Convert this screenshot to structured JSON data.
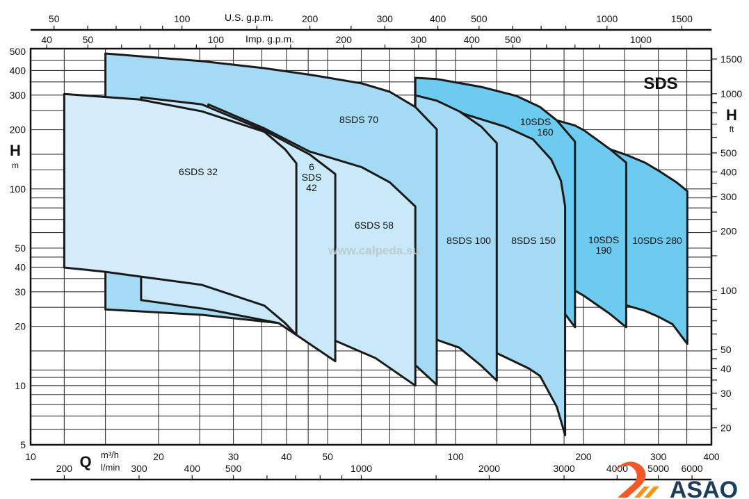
{
  "chart_data": {
    "type": "area",
    "title": "SDS",
    "watermark": "www.calpeda.su",
    "logo": "ASAO",
    "x_axis": {
      "label": "Q",
      "unit": "m³/h",
      "scale": "log",
      "range": [
        10,
        400
      ],
      "ticks": [
        10,
        20,
        30,
        40,
        50,
        100,
        200,
        300,
        400
      ]
    },
    "x_axis_lmin": {
      "unit": "l/min",
      "factor_to_m3h": 0.06,
      "ticks": [
        200,
        300,
        400,
        500,
        1000,
        2000,
        3000,
        4000,
        5000,
        6000
      ],
      "minor": [
        600,
        700,
        800,
        900,
        1500
      ]
    },
    "x_axis_us_gpm": {
      "label": "U.S. g.p.m.",
      "factor_to_m3h": 0.2271,
      "ticks": [
        50,
        100,
        200,
        300,
        400,
        500,
        1000,
        1500
      ],
      "minor": [
        60,
        70,
        80,
        90,
        150,
        250,
        600,
        700,
        800
      ]
    },
    "x_axis_imp_gpm": {
      "label": "Imp. g.p.m.",
      "factor_to_m3h": 0.2728,
      "ticks": [
        40,
        50,
        100,
        200,
        300,
        400,
        500,
        1000
      ],
      "minor": [
        60,
        70,
        80,
        90,
        150,
        250,
        600,
        700,
        800
      ]
    },
    "y_axis": {
      "label": "H",
      "unit": "m",
      "scale": "log",
      "range": [
        5,
        500
      ],
      "ticks": [
        5,
        10,
        20,
        30,
        40,
        50,
        100,
        200,
        300,
        400,
        500
      ]
    },
    "y_axis_ft": {
      "label": "H",
      "unit": "ft",
      "factor_to_m": 0.3048,
      "ticks": [
        20,
        30,
        40,
        50,
        100,
        200,
        300,
        400,
        500,
        1000,
        1500
      ],
      "minor": [
        25,
        35,
        45,
        60,
        70,
        80,
        90,
        150,
        250,
        350,
        600,
        700,
        800,
        900
      ]
    },
    "grid": true,
    "grid_q": [
      12,
      15,
      20,
      25,
      30,
      35,
      40,
      45,
      50,
      60,
      70,
      80,
      90,
      100,
      125,
      150,
      180,
      200,
      250,
      300,
      350
    ],
    "grid_h": [
      6,
      7,
      8,
      9,
      10,
      11,
      12,
      15,
      20,
      25,
      30,
      35,
      40,
      45,
      50,
      60,
      70,
      80,
      90,
      100,
      125,
      150,
      200,
      250,
      300,
      350,
      400,
      450
    ],
    "series": [
      {
        "name": "10SDS 280",
        "label": [
          "10SDS 280"
        ],
        "color": "#6dcbf0",
        "points": [
          [
            231,
            159
          ],
          [
            252,
            149
          ],
          [
            279,
            136
          ],
          [
            300,
            124
          ],
          [
            331,
            108
          ],
          [
            351,
            97.5
          ],
          [
            351,
            16.3
          ],
          [
            324,
            20.5
          ],
          [
            300,
            22.4
          ],
          [
            279,
            24.0
          ],
          [
            252,
            25.6
          ],
          [
            231,
            26
          ]
        ]
      },
      {
        "name": "10SDS 190",
        "label": [
          "10SDS",
          "190"
        ],
        "color": "#6dcbf0",
        "points": [
          [
            173,
            223
          ],
          [
            191,
            210
          ],
          [
            201,
            198
          ],
          [
            231,
            159
          ],
          [
            252,
            136
          ],
          [
            252,
            19.8
          ],
          [
            231,
            23.1
          ],
          [
            201,
            28.5
          ],
          [
            191,
            30.4
          ],
          [
            173,
            31
          ]
        ]
      },
      {
        "name": "10SDS 160",
        "label": [
          "10SDS",
          "160"
        ],
        "color": "#6dcbf0",
        "points": [
          [
            80.4,
            367
          ],
          [
            90.3,
            362
          ],
          [
            115,
            330
          ],
          [
            139,
            297
          ],
          [
            158,
            261
          ],
          [
            173,
            223
          ],
          [
            191,
            174
          ],
          [
            191,
            19.8
          ],
          [
            181,
            23.1
          ],
          [
            149,
            29.9
          ],
          [
            125,
            35.2
          ],
          [
            90.3,
            38.2
          ],
          [
            80.4,
            38.2
          ]
        ]
      },
      {
        "name": "8SDS 150",
        "label": [
          "8SDS 150"
        ],
        "color": "#a4daf3",
        "points": [
          [
            102,
            248
          ],
          [
            105,
            240
          ],
          [
            131,
            207
          ],
          [
            152,
            179
          ],
          [
            168,
            141
          ],
          [
            177,
            110
          ],
          [
            181,
            81.5
          ],
          [
            181,
            5.6
          ],
          [
            173,
            7.8
          ],
          [
            158,
            11.2
          ],
          [
            149,
            12.2
          ],
          [
            126,
            14.5
          ],
          [
            102,
            16
          ]
        ]
      },
      {
        "name": "8SDS 100",
        "label": [
          "8SDS 100"
        ],
        "color": "#a4daf3",
        "points": [
          [
            80.4,
            299
          ],
          [
            90.3,
            281
          ],
          [
            102,
            248
          ],
          [
            115,
            207
          ],
          [
            125,
            171
          ],
          [
            125,
            10.6
          ],
          [
            115,
            12.6
          ],
          [
            102,
            15.6
          ],
          [
            90.3,
            17.1
          ],
          [
            80.4,
            18.4
          ]
        ]
      },
      {
        "name": "8SDS 70",
        "label": [
          "8SDS 70"
        ],
        "color": "#a4daf3",
        "points": [
          [
            15,
            488
          ],
          [
            25.3,
            446
          ],
          [
            35.5,
            411
          ],
          [
            46.1,
            379
          ],
          [
            60.1,
            344
          ],
          [
            70,
            312
          ],
          [
            80.4,
            261
          ],
          [
            90.3,
            201
          ],
          [
            90.3,
            10.1
          ],
          [
            80.4,
            12.7
          ],
          [
            70,
            14.4
          ],
          [
            55.7,
            16.3
          ],
          [
            44.5,
            18.7
          ],
          [
            38.3,
            20.8
          ],
          [
            25.3,
            22.9
          ],
          [
            15,
            24.4
          ]
        ]
      },
      {
        "name": "6SDS 58",
        "label": [
          "6SDS 58"
        ],
        "color": "#c9e9f9",
        "points": [
          [
            26.2,
            269
          ],
          [
            35.5,
            203
          ],
          [
            45.3,
            155
          ],
          [
            60.1,
            129
          ],
          [
            70,
            108
          ],
          [
            80.4,
            81.5
          ],
          [
            80.4,
            10.0
          ],
          [
            64.8,
            13.8
          ],
          [
            52.1,
            16.9
          ],
          [
            42.2,
            20.0
          ],
          [
            26.2,
            24.4
          ]
        ]
      },
      {
        "name": "6SDS 42",
        "label": [
          "6",
          "SDS",
          "42"
        ],
        "color": "#c9e9f9",
        "points": [
          [
            18.2,
            292
          ],
          [
            25.3,
            269
          ],
          [
            35.5,
            198
          ],
          [
            45.3,
            150
          ],
          [
            52.1,
            119
          ],
          [
            52.1,
            13.3
          ],
          [
            42.2,
            18.1
          ],
          [
            38.3,
            20.8
          ],
          [
            26.2,
            24.4
          ],
          [
            18.2,
            27.2
          ]
        ]
      },
      {
        "name": "6SDS 32",
        "label": [
          "6SDS 32"
        ],
        "color": "#d5edfb",
        "points": [
          [
            12,
            304
          ],
          [
            18,
            285
          ],
          [
            25.3,
            248
          ],
          [
            35.5,
            195
          ],
          [
            39.7,
            159
          ],
          [
            42.2,
            135
          ],
          [
            42.2,
            18.1
          ],
          [
            39.7,
            20.8
          ],
          [
            35.5,
            25.5
          ],
          [
            25.3,
            32.5
          ],
          [
            18.2,
            35.8
          ],
          [
            15,
            37.9
          ],
          [
            12,
            39.8
          ]
        ]
      }
    ]
  }
}
